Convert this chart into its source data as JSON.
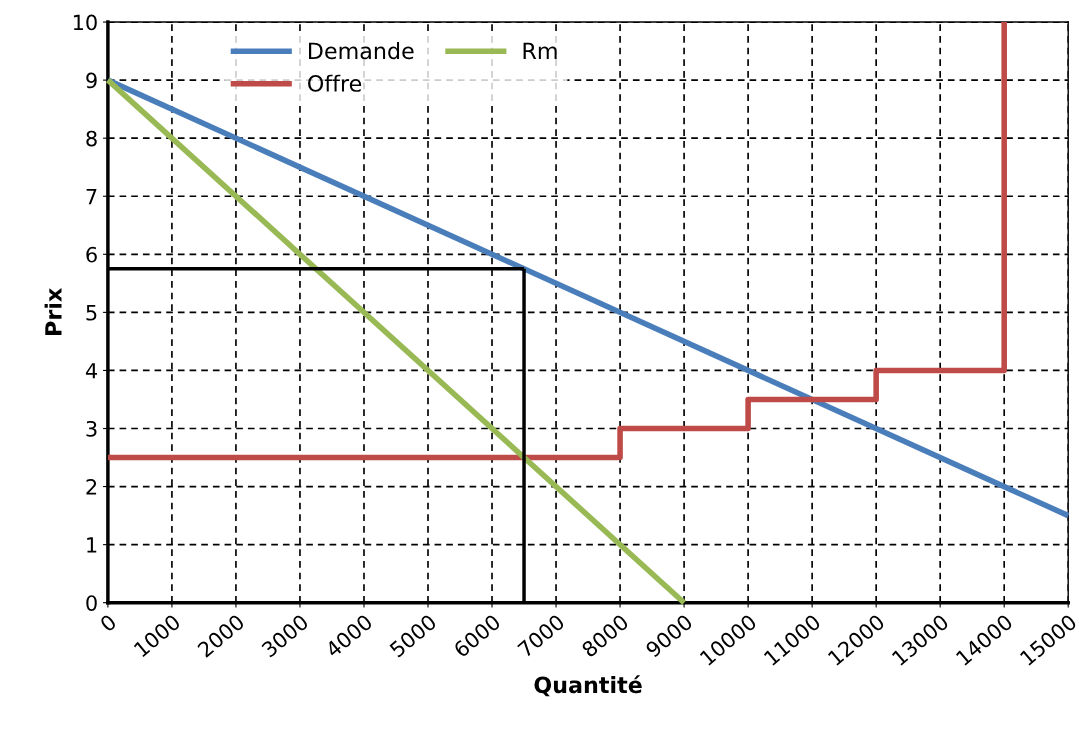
{
  "chart_data": {
    "type": "line",
    "xlabel": "Quantité",
    "ylabel": "Prix",
    "xlim": [
      0,
      15000
    ],
    "xticks": [
      0,
      1000,
      2000,
      3000,
      4000,
      5000,
      6000,
      7000,
      8000,
      9000,
      10000,
      11000,
      12000,
      13000,
      14000,
      15000
    ],
    "ylim": [
      0,
      10
    ],
    "yticks": [
      0,
      1,
      2,
      3,
      4,
      5,
      6,
      7,
      8,
      9,
      10
    ],
    "grid": true,
    "legend": "top",
    "marker": "none",
    "line_style": "solid",
    "series": [
      {
        "name": "Demande",
        "color": "#4a7ebb",
        "x": [
          0,
          15000
        ],
        "values": [
          9,
          1.5
        ]
      },
      {
        "name": "Offre",
        "color": "#be4b48",
        "x": [
          0,
          8000,
          8000,
          10000,
          10000,
          12000,
          12000,
          14000,
          14000
        ],
        "values": [
          2.5,
          2.5,
          3,
          3,
          3.5,
          3.5,
          4,
          4,
          10
        ]
      },
      {
        "name": "Rm",
        "color": "#98b954",
        "x": [
          0,
          9000
        ],
        "values": [
          9,
          0
        ]
      },
      {
        "color": "#000000",
        "x": [
          0,
          6500
        ],
        "values": [
          5.75,
          5.75
        ]
      },
      {
        "color": "#000000",
        "x": [
          6500,
          6500
        ],
        "values": [
          0,
          5.75
        ]
      }
    ]
  }
}
